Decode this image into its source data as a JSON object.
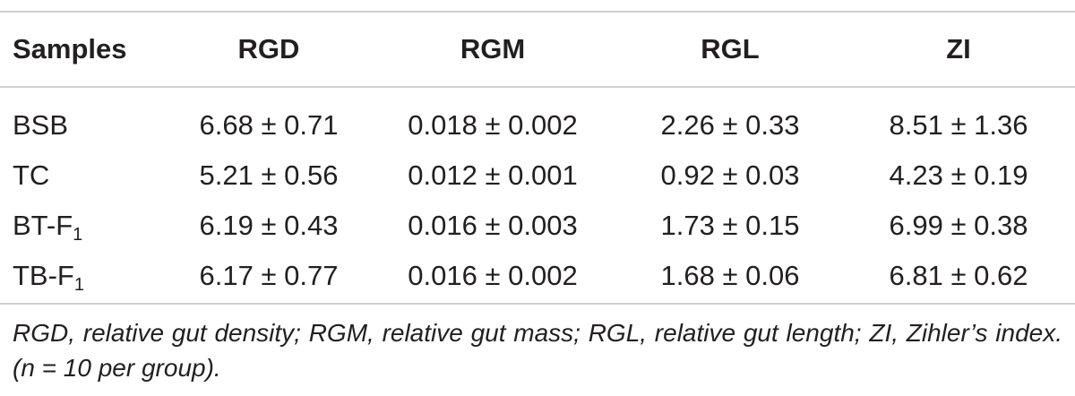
{
  "table": {
    "headers": [
      "Samples",
      "RGD",
      "RGM",
      "RGL",
      "ZI"
    ],
    "rows": [
      {
        "sample": "BSB",
        "sample_sub": "",
        "rgd": "6.68 ± 0.71",
        "rgm": "0.018 ± 0.002",
        "rgl": "2.26 ± 0.33",
        "zi": "8.51 ± 1.36"
      },
      {
        "sample": "TC",
        "sample_sub": "",
        "rgd": "5.21 ± 0.56",
        "rgm": "0.012 ± 0.001",
        "rgl": "0.92 ± 0.03",
        "zi": "4.23 ± 0.19"
      },
      {
        "sample": "BT-F",
        "sample_sub": "1",
        "rgd": "6.19 ± 0.43",
        "rgm": "0.016 ± 0.003",
        "rgl": "1.73 ± 0.15",
        "zi": "6.99 ± 0.38"
      },
      {
        "sample": "TB-F",
        "sample_sub": "1",
        "rgd": "6.17 ± 0.77",
        "rgm": "0.016 ± 0.002",
        "rgl": "1.68 ± 0.06",
        "zi": "6.81 ± 0.62"
      }
    ]
  },
  "footnote": "RGD, relative gut density; RGM, relative gut mass; RGL, relative gut length; ZI, Zihler’s index. (n = 10 per group)."
}
